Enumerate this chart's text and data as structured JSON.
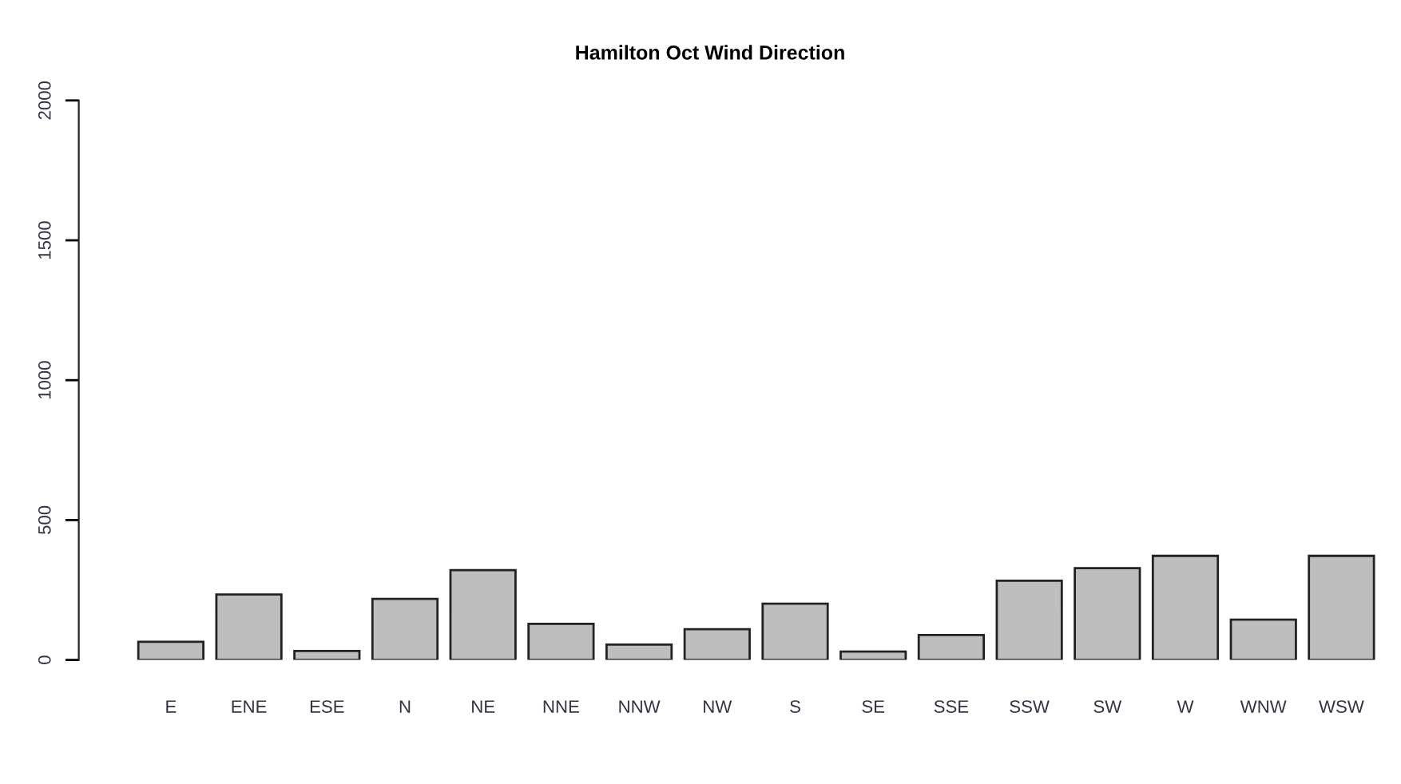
{
  "chart_data": {
    "type": "bar",
    "title": "Hamilton Oct Wind Direction",
    "categories": [
      "E",
      "ENE",
      "ESE",
      "N",
      "NE",
      "NNE",
      "NNW",
      "NW",
      "S",
      "SE",
      "SSE",
      "SSW",
      "SW",
      "W",
      "WNW",
      "WSW"
    ],
    "values": [
      65,
      234,
      32,
      218,
      321,
      129,
      55,
      110,
      201,
      30,
      89,
      283,
      328,
      372,
      144,
      372
    ],
    "color": "#bebebe",
    "ylim": [
      0,
      2000
    ],
    "yticks": [
      0,
      500,
      1000,
      1500,
      2000
    ],
    "grid": false,
    "legend": false
  }
}
